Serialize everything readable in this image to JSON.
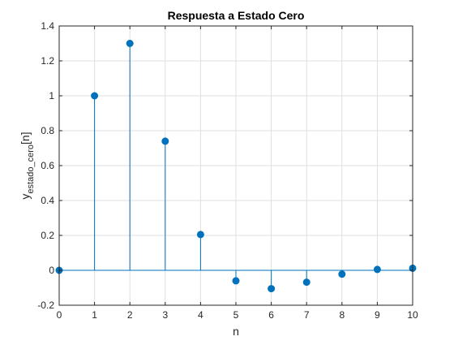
{
  "chart_data": {
    "type": "stem",
    "title": "Respuesta a Estado Cero",
    "xlabel": "n",
    "ylabel": {
      "base": "y",
      "subscript": "estado_cero",
      "suffix": "[n]"
    },
    "xlim": [
      0,
      10
    ],
    "ylim": [
      -0.2,
      1.4
    ],
    "xticks": [
      "0",
      "1",
      "2",
      "3",
      "4",
      "5",
      "6",
      "7",
      "8",
      "9",
      "10"
    ],
    "yticks": [
      "-0.2",
      "0",
      "0.2",
      "0.4",
      "0.6",
      "0.8",
      "1",
      "1.2",
      "1.4"
    ],
    "grid": true,
    "series": [
      {
        "x": [
          0,
          1,
          2,
          3,
          4,
          5,
          6,
          7,
          8,
          9,
          10
        ],
        "values": [
          0,
          1.0,
          1.3,
          0.74,
          0.205,
          -0.06,
          -0.105,
          -0.068,
          -0.022,
          0.005,
          0.012
        ]
      }
    ],
    "color": "#0072BD",
    "grid_color": "#dfdfdf",
    "axis_color": "#262626"
  }
}
